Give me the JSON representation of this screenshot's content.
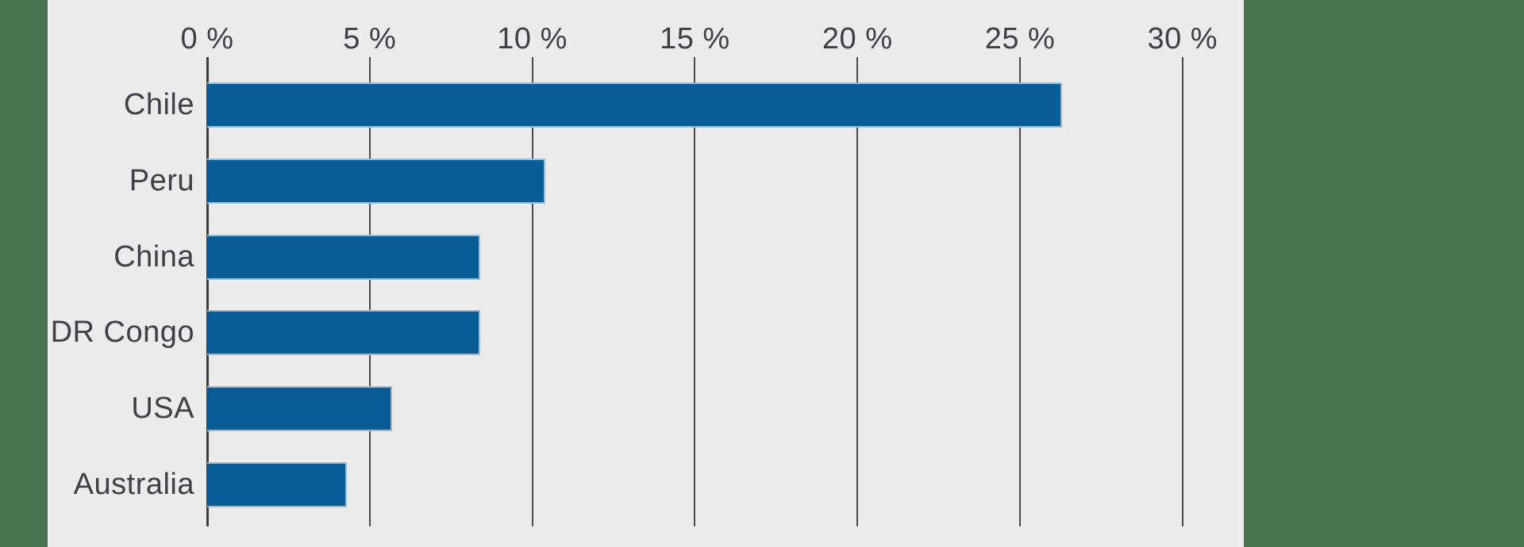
{
  "page": {
    "background": "#4A7350",
    "panel_background": "#EBEBEC"
  },
  "chart_data": {
    "type": "bar",
    "orientation": "horizontal",
    "categories": [
      "Chile",
      "Peru",
      "China",
      "DR Congo",
      "USA",
      "Australia"
    ],
    "values": [
      26.3,
      10.4,
      8.4,
      8.4,
      5.7,
      4.3
    ],
    "unit": "%",
    "xlim": [
      0,
      30
    ],
    "tick_step": 5,
    "x_tick_labels": [
      "0 %",
      "5 %",
      "10 %",
      "15 %",
      "20 %",
      "25 %",
      "30 %"
    ],
    "grid": "vertical gridlines only, no horizontal axis line",
    "legend": "none",
    "bar_color": "#085C96",
    "bar_border_color": "#9DBBD3",
    "gridline_color": "#4B4B4B",
    "axis_line_color": "#3D3D3D",
    "label_color": "#3F3F47"
  }
}
